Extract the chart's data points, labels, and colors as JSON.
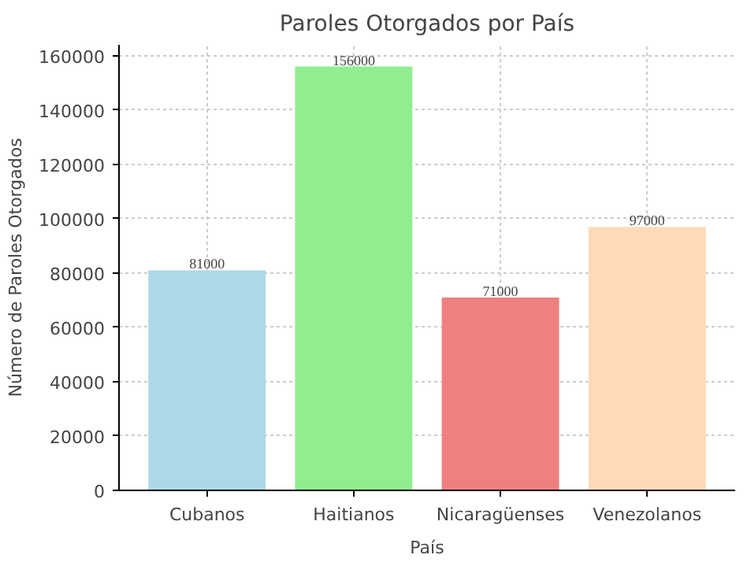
{
  "chart_data": {
    "type": "bar",
    "title": "Paroles Otorgados por País",
    "xlabel": "País",
    "ylabel": "Número de Paroles Otorgados",
    "categories": [
      "Cubanos",
      "Haitianos",
      "Nicaragüenses",
      "Venezolanos"
    ],
    "values": [
      81000,
      156000,
      71000,
      97000
    ],
    "colors": [
      "#add8e6",
      "#90ee90",
      "#f08080",
      "#ffdab9"
    ],
    "ylim": [
      0,
      164000
    ],
    "yticks": [
      0,
      20000,
      40000,
      60000,
      80000,
      100000,
      120000,
      140000,
      160000
    ],
    "grid": true,
    "data_labels": true
  }
}
